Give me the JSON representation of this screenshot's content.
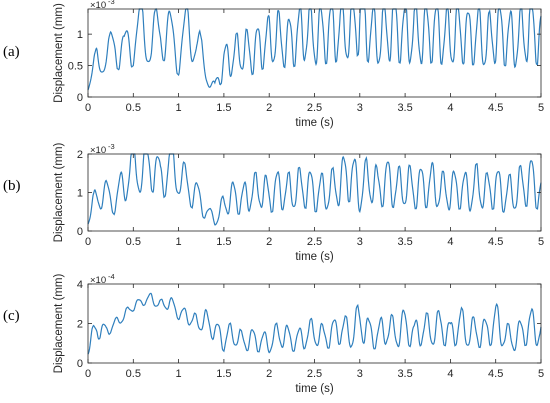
{
  "figure": {
    "background": "#ffffff",
    "line_color": "#2f7fbd",
    "axes_color": "#262626"
  },
  "chart_data": [
    {
      "type": "line",
      "panel_label": "(a)",
      "xlabel": "time (s)",
      "ylabel": "Displacement (mm)",
      "xlim": [
        0,
        5
      ],
      "ylim": [
        0,
        1.4
      ],
      "x_ticks": [
        0,
        0.5,
        1,
        1.5,
        2,
        2.5,
        3,
        3.5,
        4,
        4.5,
        5
      ],
      "x_tick_labels": [
        "0",
        "0.5",
        "1",
        "1.5",
        "2",
        "2.5",
        "3",
        "3.5",
        "4",
        "4.5",
        "5"
      ],
      "y_ticks": [
        0,
        0.5,
        1
      ],
      "y_tick_labels": [
        "0",
        "0.5",
        "1"
      ],
      "multiplier_base": "×10",
      "multiplier_exponent": "-3",
      "x": [
        0,
        0.1,
        0.2,
        0.3,
        0.4,
        0.5,
        0.6,
        0.7,
        0.8,
        0.9,
        1.0,
        1.1,
        1.2,
        1.3,
        1.4,
        1.5,
        1.6,
        1.7,
        1.8,
        1.9,
        2.0,
        2.1,
        2.2,
        2.3,
        2.4,
        2.5,
        2.6,
        2.7,
        2.8,
        2.9,
        3.0,
        3.1,
        3.2,
        3.3,
        3.4,
        3.5,
        3.6,
        3.7,
        3.8,
        3.9,
        4.0,
        4.1,
        4.2,
        4.3,
        4.4,
        4.5,
        4.6,
        4.7,
        4.8,
        4.9,
        5.0
      ],
      "y": [
        0.2,
        0.55,
        0.6,
        0.9,
        0.7,
        0.95,
        1.1,
        0.8,
        1.15,
        0.95,
        0.7,
        1.05,
        0.9,
        0.4,
        0.15,
        0.55,
        0.65,
        0.75,
        0.7,
        0.8,
        0.9,
        0.95,
        0.85,
        0.95,
        1.05,
        1.0,
        1.0,
        1.05,
        1.1,
        1.05,
        1.35,
        1.05,
        0.95,
        1.1,
        1.1,
        1.0,
        1.05,
        1.0,
        1.05,
        1.0,
        0.95,
        1.05,
        0.95,
        1.0,
        0.85,
        1.05,
        0.95,
        0.9,
        1.0,
        1.1,
        0.95
      ],
      "amp": [
        0.2,
        0.55,
        0.35,
        0.85,
        0.65,
        0.9,
        0.95,
        0.75,
        1.05,
        0.9,
        0.7,
        0.95,
        0.75,
        0.4,
        0.15,
        0.55,
        0.6,
        0.7,
        0.7,
        0.75,
        0.8,
        0.85,
        0.8,
        0.9,
        0.95,
        1.0,
        0.95,
        1.0,
        1.05,
        1.0,
        1.3,
        1.0,
        0.95,
        1.05,
        1.05,
        1.0,
        1.0,
        1.0,
        1.0,
        0.95,
        0.95,
        1.0,
        0.9,
        0.95,
        0.85,
        1.0,
        0.9,
        0.9,
        0.95,
        1.05,
        0.95
      ]
    },
    {
      "type": "line",
      "panel_label": "(b)",
      "xlabel": "time (s)",
      "ylabel": "Displacement (mm)",
      "xlim": [
        0,
        5
      ],
      "ylim": [
        0,
        2
      ],
      "x_ticks": [
        0,
        0.5,
        1,
        1.5,
        2,
        2.5,
        3,
        3.5,
        4,
        4.5,
        5
      ],
      "x_tick_labels": [
        "0",
        "0.5",
        "1",
        "1.5",
        "2",
        "2.5",
        "3",
        "3.5",
        "4",
        "4.5",
        "5"
      ],
      "y_ticks": [
        0,
        1,
        2
      ],
      "y_tick_labels": [
        "0",
        "1",
        "2"
      ],
      "multiplier_base": "×10",
      "multiplier_exponent": "-3",
      "x": [
        0,
        0.1,
        0.2,
        0.3,
        0.4,
        0.5,
        0.6,
        0.7,
        0.8,
        0.9,
        1.0,
        1.1,
        1.2,
        1.3,
        1.4,
        1.5,
        1.6,
        1.7,
        1.8,
        1.9,
        2.0,
        2.1,
        2.2,
        2.3,
        2.4,
        2.5,
        2.6,
        2.7,
        2.8,
        2.9,
        3.0,
        3.1,
        3.2,
        3.3,
        3.4,
        3.5,
        3.6,
        3.7,
        3.8,
        3.9,
        4.0,
        4.1,
        4.2,
        4.3,
        4.4,
        4.5,
        4.6,
        4.7,
        4.8,
        4.9,
        5.0
      ],
      "y": [
        0.3,
        0.9,
        1.0,
        0.7,
        1.3,
        1.75,
        1.5,
        1.85,
        1.3,
        1.8,
        1.4,
        1.2,
        0.9,
        0.55,
        0.25,
        0.7,
        0.9,
        0.8,
        1.0,
        1.1,
        0.9,
        1.1,
        1.0,
        1.1,
        1.15,
        1.0,
        1.0,
        1.1,
        1.3,
        1.5,
        1.0,
        1.4,
        1.1,
        1.3,
        1.1,
        1.2,
        1.1,
        1.15,
        1.2,
        1.05,
        1.05,
        1.1,
        1.0,
        1.2,
        1.0,
        1.15,
        0.95,
        1.0,
        1.2,
        1.3,
        1.0
      ],
      "amp": [
        0.3,
        0.8,
        0.65,
        0.6,
        1.1,
        1.5,
        1.1,
        1.6,
        1.0,
        1.6,
        1.0,
        1.0,
        0.8,
        0.5,
        0.25,
        0.6,
        0.8,
        0.8,
        0.9,
        1.0,
        0.9,
        1.0,
        1.0,
        1.05,
        1.1,
        1.0,
        1.0,
        1.05,
        1.2,
        1.45,
        1.0,
        1.3,
        1.05,
        1.2,
        1.05,
        1.15,
        1.05,
        1.1,
        1.15,
        1.0,
        1.0,
        1.05,
        1.0,
        1.15,
        1.0,
        1.1,
        0.95,
        1.0,
        1.15,
        1.25,
        1.0
      ]
    },
    {
      "type": "line",
      "panel_label": "(c)",
      "xlabel": "time (s)",
      "ylabel": "Displacement (mm)",
      "xlim": [
        0,
        5
      ],
      "ylim": [
        0,
        4
      ],
      "x_ticks": [
        0,
        0.5,
        1,
        1.5,
        2,
        2.5,
        3,
        3.5,
        4,
        4.5,
        5
      ],
      "x_tick_labels": [
        "0",
        "0.5",
        "1",
        "1.5",
        "2",
        "2.5",
        "3",
        "3.5",
        "4",
        "4.5",
        "5"
      ],
      "y_ticks": [
        0,
        2,
        4
      ],
      "y_tick_labels": [
        "0",
        "2",
        "4"
      ],
      "multiplier_base": "×10",
      "multiplier_exponent": "-4",
      "x": [
        0,
        0.1,
        0.2,
        0.3,
        0.4,
        0.5,
        0.6,
        0.7,
        0.8,
        0.9,
        1.0,
        1.1,
        1.2,
        1.3,
        1.4,
        1.5,
        1.6,
        1.7,
        1.8,
        1.9,
        2.0,
        2.1,
        2.2,
        2.3,
        2.4,
        2.5,
        2.6,
        2.7,
        2.8,
        2.9,
        3.0,
        3.1,
        3.2,
        3.3,
        3.4,
        3.5,
        3.6,
        3.7,
        3.8,
        3.9,
        4.0,
        4.1,
        4.2,
        4.3,
        4.4,
        4.5,
        4.6,
        4.7,
        4.8,
        4.9,
        5.0
      ],
      "y": [
        0.8,
        1.8,
        1.6,
        2.0,
        2.4,
        2.9,
        3.1,
        3.3,
        2.9,
        3.1,
        2.5,
        2.4,
        2.0,
        2.2,
        1.6,
        1.2,
        1.5,
        1.1,
        1.2,
        1.1,
        1.0,
        1.5,
        1.3,
        1.1,
        1.4,
        1.6,
        1.3,
        1.5,
        1.8,
        1.4,
        2.2,
        1.5,
        1.4,
        1.8,
        1.5,
        1.9,
        1.4,
        1.8,
        1.6,
        1.9,
        1.4,
        2.0,
        1.5,
        1.6,
        1.5,
        2.1,
        1.4,
        1.2,
        1.6,
        1.9,
        1.6
      ],
      "amp": [
        0.8,
        1.2,
        0.6,
        0.5,
        0.5,
        0.5,
        0.4,
        0.5,
        0.6,
        0.7,
        0.6,
        0.8,
        0.9,
        1.0,
        1.1,
        1.2,
        1.2,
        1.0,
        1.1,
        1.1,
        1.0,
        1.3,
        1.2,
        1.1,
        1.3,
        1.5,
        1.2,
        1.4,
        1.6,
        1.4,
        2.0,
        1.5,
        1.4,
        1.7,
        1.5,
        1.8,
        1.4,
        1.7,
        1.5,
        1.8,
        1.4,
        1.9,
        1.5,
        1.6,
        1.5,
        2.0,
        1.4,
        1.2,
        1.5,
        1.8,
        1.6
      ]
    }
  ]
}
